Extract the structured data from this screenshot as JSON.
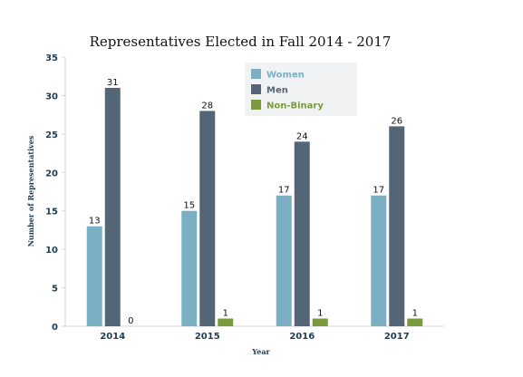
{
  "chart_data": {
    "type": "bar",
    "title": "Representatives Elected in Fall 2014 - 2017",
    "xlabel": "Year",
    "ylabel": "Number of Representatives",
    "categories": [
      "2014",
      "2015",
      "2016",
      "2017"
    ],
    "ylim": [
      0,
      35
    ],
    "yticks": [
      0,
      5,
      10,
      15,
      20,
      25,
      30,
      35
    ],
    "grid": false,
    "legend_position": "top-right",
    "series": [
      {
        "name": "Women",
        "values": [
          13,
          15,
          17,
          17
        ],
        "color": "#7aafc4"
      },
      {
        "name": "Men",
        "values": [
          31,
          28,
          24,
          26
        ],
        "color": "#546676"
      },
      {
        "name": "Non-Binary",
        "values": [
          0,
          1,
          1,
          1
        ],
        "color": "#7a9a3c"
      }
    ]
  }
}
